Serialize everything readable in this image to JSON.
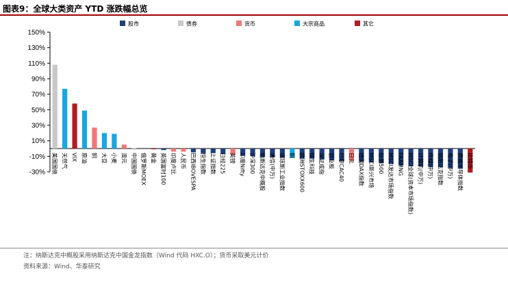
{
  "figure": {
    "title": "图表9：全球大类资产 YTD 涨跌幅总览",
    "note": "注：纳斯达克中概股采用纳斯达克中国金龙指数（Wind 代码 HXC.O）；货币采取美元计价",
    "source": "资料来源：Wind、华泰研究"
  },
  "colors": {
    "股市": "#1f3f7a",
    "债券": "#c8c8c8",
    "货币": "#f07878",
    "大宗商品": "#1aa6e0",
    "其它": "#b01c22"
  },
  "chart_data": {
    "type": "bar",
    "title": "全球大类资产 YTD 涨跌幅总览",
    "xlabel": "",
    "ylabel": "",
    "ylim": [
      -30,
      150
    ],
    "yticks": [
      -30,
      -10,
      10,
      30,
      50,
      70,
      90,
      110,
      130,
      150
    ],
    "ytick_labels": [
      "-30%",
      "-10%",
      "10%",
      "30%",
      "50%",
      "70%",
      "90%",
      "110%",
      "130%",
      "150%"
    ],
    "grid": false,
    "legend_position": "top",
    "legend": [
      "股市",
      "债券",
      "货币",
      "大宗商品",
      "其它"
    ],
    "categories": [
      "美国国债",
      "天然气",
      "VIX",
      "原油",
      "铜",
      "大豆",
      "小麦",
      "澳元",
      "中国国债",
      "俄罗斯MOEX",
      "黄金",
      "英国富时100",
      "印度卢比",
      "人民币",
      "巴西IBOVESPA",
      "恒生指数",
      "上证指数",
      "日经225",
      "英镑",
      "印度Nifty",
      "沪深300",
      "纳斯达克中概股",
      "通信(中万)",
      "道琼斯工业指数",
      "铜",
      "欧洲STOXX600",
      "恒生科技",
      "深证成指",
      "创业板",
      "巴黎CAC40",
      "日元",
      "德国DAX指数",
      "MSCI新兴市场",
      "标普500",
      "MSCI发达市场指数",
      "FAAMNG",
      "MSCI全球(资本市场指数)",
      "计算机(中万)",
      "传媒(中万)",
      "纳斯达克指数",
      "电子(中万)",
      "费城半导体指数",
      "比特币"
    ],
    "series_class": [
      "债券",
      "大宗商品",
      "其它",
      "大宗商品",
      "货币",
      "大宗商品",
      "大宗商品",
      "货币",
      "债券",
      "股市",
      "其它",
      "股市",
      "货币",
      "货币",
      "股市",
      "股市",
      "股市",
      "股市",
      "货币",
      "股市",
      "股市",
      "股市",
      "股市",
      "股市",
      "大宗商品",
      "股市",
      "股市",
      "股市",
      "股市",
      "股市",
      "货币",
      "股市",
      "股市",
      "股市",
      "股市",
      "股市",
      "股市",
      "股市",
      "股市",
      "股市",
      "股市",
      "股市",
      "其它"
    ],
    "values": [
      108,
      77,
      58,
      49,
      27,
      20,
      19,
      5,
      0.5,
      -0.5,
      -1,
      -2,
      -4,
      -4,
      -5,
      -6,
      -6,
      -7,
      -8,
      -9,
      -10,
      -11,
      -11,
      -12,
      -12,
      -13,
      -13,
      -14,
      -15,
      -16,
      -16,
      -17,
      -18,
      -19,
      -20,
      -22,
      -23,
      -23,
      -24,
      -24,
      -25,
      -26,
      -31
    ]
  }
}
